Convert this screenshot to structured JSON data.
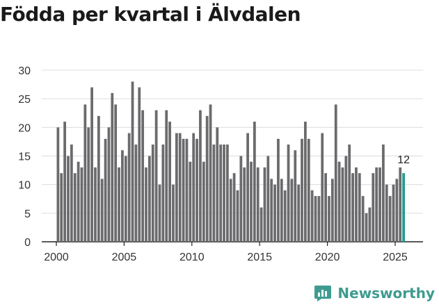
{
  "chart_data": {
    "type": "bar",
    "title": "Födda per kvartal i Älvdalen",
    "xlabel": "",
    "ylabel": "",
    "ylim": [
      0,
      30
    ],
    "yticks": [
      0,
      5,
      10,
      15,
      20,
      25,
      30
    ],
    "xticks": [
      2000,
      2005,
      2010,
      2015,
      2020,
      2025
    ],
    "x_start": 2000,
    "bar_color": "#6b6b6e",
    "highlight_color": "#1f9d8e",
    "grid": true,
    "last_value_label": "12",
    "values": [
      20,
      12,
      21,
      15,
      17,
      12,
      14,
      13,
      24,
      20,
      27,
      13,
      22,
      11,
      18,
      20,
      26,
      24,
      13,
      16,
      15,
      19,
      28,
      17,
      27,
      23,
      13,
      15,
      17,
      23,
      10,
      17,
      23,
      21,
      10,
      19,
      19,
      18,
      18,
      14,
      19,
      18,
      23,
      14,
      22,
      24,
      17,
      20,
      17,
      17,
      17,
      11,
      12,
      9,
      15,
      13,
      19,
      14,
      21,
      13,
      6,
      13,
      15,
      11,
      10,
      18,
      11,
      9,
      17,
      11,
      16,
      10,
      18,
      21,
      18,
      9,
      8,
      8,
      19,
      12,
      8,
      11,
      24,
      14,
      13,
      15,
      17,
      12,
      13,
      12,
      8,
      5,
      6,
      12,
      13,
      13,
      17,
      10,
      8,
      10,
      11,
      13,
      12
    ]
  },
  "branding": {
    "name": "Newsworthy",
    "color": "#3f9b8f"
  }
}
